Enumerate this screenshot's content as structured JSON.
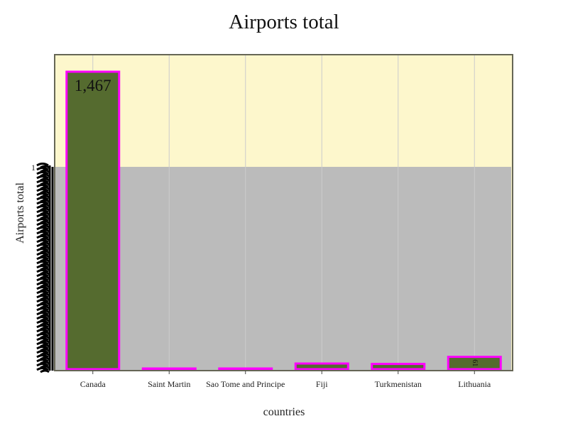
{
  "chart_data": {
    "type": "bar",
    "title": "Airports total",
    "xlabel": "countries",
    "ylabel": "Airports total",
    "categories": [
      "Canada",
      "Saint Martin",
      "Sao Tome and Principe",
      "Fiji",
      "Turkmenistan",
      "Lithuania"
    ],
    "values": [
      1467,
      1,
      2,
      28,
      26,
      61
    ],
    "value_labels": [
      "1,467",
      "",
      "",
      "",
      "",
      "61"
    ],
    "ylim": [
      0,
      1540
    ],
    "y_tick_top_label": "1",
    "grid": true,
    "legend": "none",
    "colors": {
      "bar_fill": "#556b2f",
      "bar_stroke": "#ff00ff",
      "plot_background": "#fdf7cc",
      "lower_band": "#bbbbbb",
      "frame": "#666655",
      "grid": "#cccccc"
    }
  }
}
